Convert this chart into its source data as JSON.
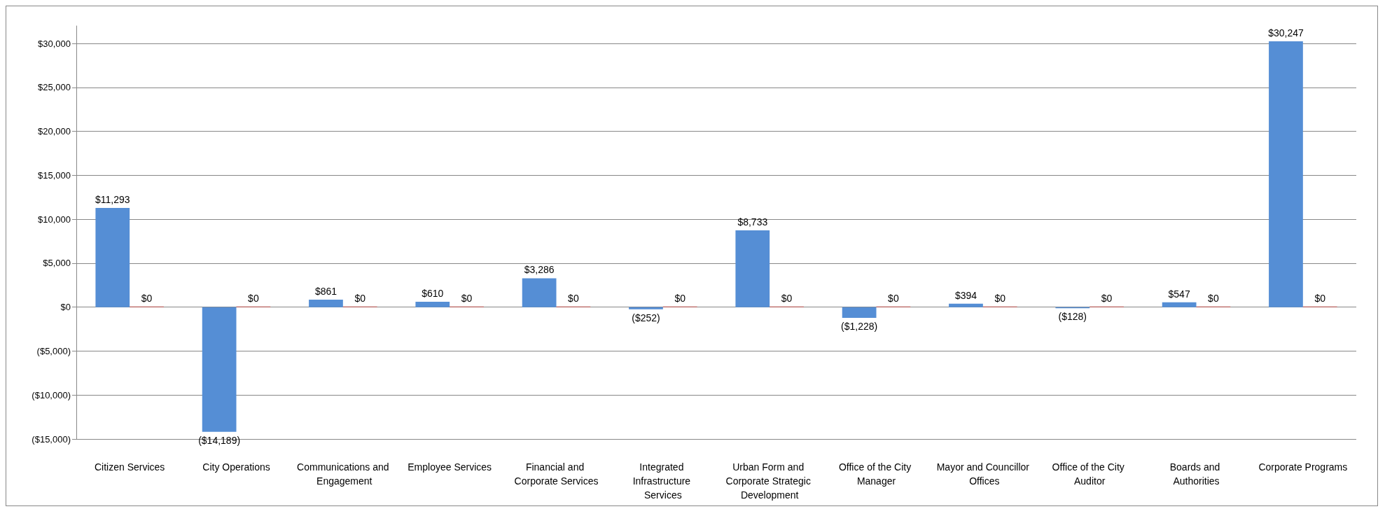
{
  "chart_data": {
    "type": "bar",
    "categories": [
      "Citizen Services",
      "City Operations",
      "Communications and Engagement",
      "Employee Services",
      "Financial and Corporate Services",
      "Integrated Infrastructure Services",
      "Urban Form and Corporate Strategic Development",
      "Office of the City Manager",
      "Mayor and Councillor Offices",
      "Office of the City Auditor",
      "Boards and Authorities",
      "Corporate Programs"
    ],
    "series": [
      {
        "color": "#558ed5",
        "values": [
          11293,
          -14189,
          861,
          610,
          3286,
          -252,
          8733,
          -1228,
          394,
          -128,
          547,
          30247
        ],
        "value_labels": [
          "$11,293",
          "($14,189)",
          "$861",
          "$610",
          "$3,286",
          "($252)",
          "$8,733",
          "($1,228)",
          "$394",
          "($128)",
          "$547",
          "$30,247"
        ]
      },
      {
        "color": "#c0504d",
        "values": [
          0,
          0,
          0,
          0,
          0,
          0,
          0,
          0,
          0,
          0,
          0,
          0
        ],
        "value_labels": [
          "$0",
          "$0",
          "$0",
          "$0",
          "$0",
          "$0",
          "$0",
          "$0",
          "$0",
          "$0",
          "$0",
          "$0"
        ]
      }
    ],
    "ylim": [
      -15000,
      32000
    ],
    "yticks": [
      {
        "value": -15000,
        "label": "($15,000)"
      },
      {
        "value": -10000,
        "label": "($10,000)"
      },
      {
        "value": -5000,
        "label": "($5,000)"
      },
      {
        "value": 0,
        "label": "$0"
      },
      {
        "value": 5000,
        "label": "$5,000"
      },
      {
        "value": 10000,
        "label": "$10,000"
      },
      {
        "value": 15000,
        "label": "$15,000"
      },
      {
        "value": 20000,
        "label": "$20,000"
      },
      {
        "value": 25000,
        "label": "$25,000"
      },
      {
        "value": 30000,
        "label": "$30,000"
      }
    ],
    "grid": "y"
  }
}
